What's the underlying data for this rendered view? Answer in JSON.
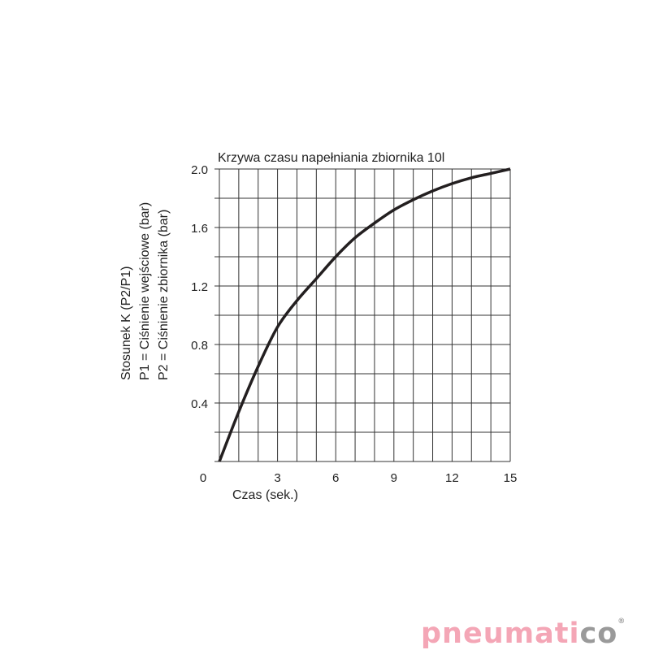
{
  "chart_data": {
    "type": "line",
    "title": "Krzywa czasu napełniania zbiornika 10l",
    "xlabel": "Czas (sek.)",
    "ylabel_lines": [
      "Stosunek K (P2/P1)",
      "P1 = Ciśnienie wejściowe (bar)",
      "P2 = Ciśnienie zbiornika (bar)"
    ],
    "xlim": [
      0,
      15
    ],
    "ylim": [
      0,
      2.0
    ],
    "x_ticks": [
      3,
      6,
      9,
      12,
      15
    ],
    "y_ticks": [
      0.4,
      0.8,
      1.2,
      1.6,
      2.0
    ],
    "y_tick_labels": [
      "0.4",
      "0.8",
      "1.2",
      "1.6",
      "2.0"
    ],
    "origin_label": "0",
    "grid": true,
    "grid_x_step": 1,
    "grid_y_step": 0.2,
    "line_color": "#231f20",
    "x": [
      0,
      1,
      2,
      3,
      4,
      5,
      6,
      7,
      8,
      9,
      10,
      11,
      12,
      13,
      14,
      15
    ],
    "y": [
      0,
      0.34,
      0.65,
      0.92,
      1.1,
      1.25,
      1.4,
      1.53,
      1.63,
      1.72,
      1.79,
      1.85,
      1.9,
      1.94,
      1.97,
      2.0
    ]
  },
  "logo": {
    "text_main": "pneumati",
    "text_accent": "co",
    "mark": "®",
    "main_color": "#f4a6b6",
    "accent_color": "#9a9a9a"
  }
}
